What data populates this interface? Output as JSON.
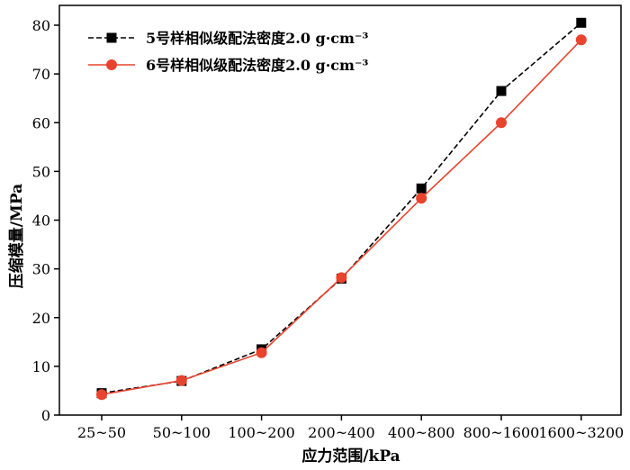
{
  "chart_data": {
    "type": "line",
    "categories": [
      "25~50",
      "50~100",
      "100~200",
      "200~400",
      "400~800",
      "800~1600",
      "1600~3200"
    ],
    "xlabel": "应力范围/kPa",
    "ylabel": "压缩模量/MPa",
    "ylim": [
      0,
      80
    ],
    "yticks": [
      0,
      10,
      20,
      30,
      40,
      50,
      60,
      70,
      80
    ],
    "legend_position": "top-left",
    "grid": false,
    "series": [
      {
        "name": "5号样相似级配法密度2.0 g·cm⁻³",
        "values": [
          4.5,
          7.0,
          13.5,
          28.0,
          46.5,
          66.5,
          80.5
        ],
        "color": "#000000",
        "marker": "square",
        "line_style": "dashed"
      },
      {
        "name": "6号样相似级配法密度2.0 g·cm⁻³",
        "values": [
          4.2,
          7.1,
          12.8,
          28.2,
          44.5,
          60.0,
          77.0
        ],
        "color": "#e8432e",
        "marker": "circle",
        "line_style": "solid"
      }
    ]
  }
}
